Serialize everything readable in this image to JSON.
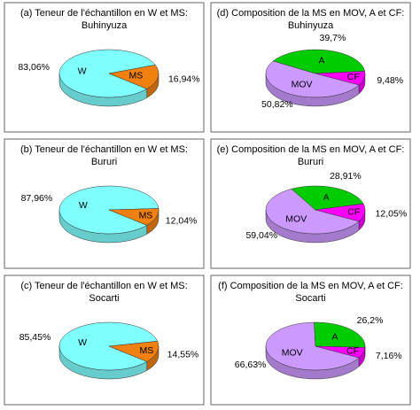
{
  "chart_data": [
    {
      "type": "pie",
      "title": "(a) Teneur de l'échantillon en W et MS:",
      "subtitle": "Buhinyuza",
      "categories": [
        "W",
        "MS"
      ],
      "values": [
        83.06,
        16.94
      ],
      "value_labels": [
        "83,06%",
        "16,94%"
      ],
      "colors": [
        "#80ffff",
        "#f08010"
      ]
    },
    {
      "type": "pie",
      "title": "(b) Teneur de l'échantillon en W et MS:",
      "subtitle": "Bururi",
      "categories": [
        "W",
        "MS"
      ],
      "values": [
        87.96,
        12.04
      ],
      "value_labels": [
        "87,96%",
        "12,04%"
      ],
      "colors": [
        "#80ffff",
        "#f08010"
      ]
    },
    {
      "type": "pie",
      "title": "(c) Teneur de l'échantillon en W et MS:",
      "subtitle": "Socarti",
      "categories": [
        "W",
        "MS"
      ],
      "values": [
        85.45,
        14.55
      ],
      "value_labels": [
        "85,45%",
        "14,55%"
      ],
      "colors": [
        "#80ffff",
        "#f08010"
      ]
    },
    {
      "type": "pie",
      "title": "(d) Composition de la MS en MOV, A et CF:",
      "subtitle": "Buhinyuza",
      "categories": [
        "MOV",
        "A",
        "CF"
      ],
      "values": [
        50.82,
        39.7,
        9.48
      ],
      "value_labels": [
        "50,82%",
        "39,7%",
        "9,48%"
      ],
      "colors": [
        "#cc99ff",
        "#00cc00",
        "#ff00ff"
      ]
    },
    {
      "type": "pie",
      "title": "(e) Composition de la MS en MOV, A et CF:",
      "subtitle": "Bururi",
      "categories": [
        "MOV",
        "A",
        "CF"
      ],
      "values": [
        59.04,
        28.91,
        12.05
      ],
      "value_labels": [
        "59,04%",
        "28,91%",
        "12,05%"
      ],
      "colors": [
        "#cc99ff",
        "#00cc00",
        "#ff00ff"
      ]
    },
    {
      "type": "pie",
      "title": "(f) Composition de la MS en MOV, A et CF:",
      "subtitle": "Socarti",
      "categories": [
        "MOV",
        "A",
        "CF"
      ],
      "values": [
        66.63,
        26.2,
        7.16
      ],
      "value_labels": [
        "66,63%",
        "26,2%",
        "7,16%"
      ],
      "colors": [
        "#cc99ff",
        "#00cc00",
        "#ff00ff"
      ]
    }
  ]
}
